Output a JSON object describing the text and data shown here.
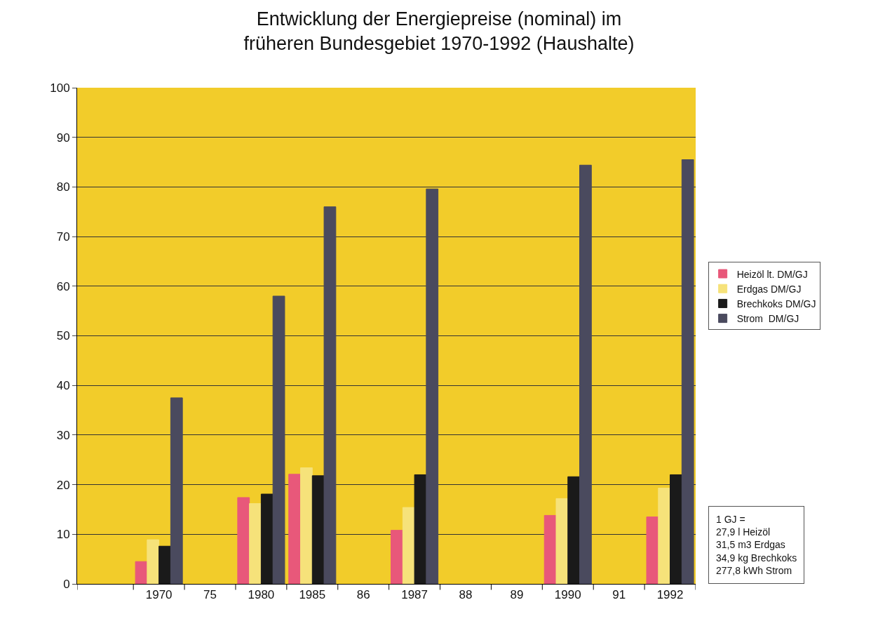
{
  "chart_data": {
    "type": "bar",
    "title": "Entwicklung der Energiepreise (nominal) im\nfrüheren Bundesgebiet 1970-1992 (Haushalte)",
    "categories": [
      "1970",
      "75",
      "1980",
      "1985",
      "86",
      "1987",
      "88",
      "89",
      "1990",
      "91",
      "1992"
    ],
    "series": [
      {
        "name": "Heizöl lt. DM/GJ",
        "color": "#e8587a",
        "values": [
          4.5,
          null,
          17.4,
          22.1,
          null,
          10.8,
          null,
          null,
          13.8,
          null,
          13.5
        ]
      },
      {
        "name": "Erdgas DM/GJ",
        "color": "#f6e27a",
        "values": [
          8.9,
          null,
          16.2,
          23.4,
          null,
          15.4,
          null,
          null,
          17.2,
          null,
          19.3
        ]
      },
      {
        "name": "Brechkoks DM/GJ",
        "color": "#1a1a1a",
        "values": [
          7.6,
          null,
          18.1,
          21.8,
          null,
          22.0,
          null,
          null,
          21.6,
          null,
          22.0
        ]
      },
      {
        "name": "Strom  DM/GJ",
        "color": "#4a4a5e",
        "values": [
          37.5,
          null,
          58.0,
          76.0,
          null,
          79.6,
          null,
          null,
          84.4,
          null,
          85.5
        ]
      }
    ],
    "ylim": [
      0,
      100
    ],
    "yticks": [
      0,
      10,
      20,
      30,
      40,
      50,
      60,
      70,
      80,
      90,
      100
    ],
    "grid": "y",
    "legend": "right",
    "annotations": [
      "1 GJ =\n27,9 l Heizöl\n31,5 m3 Erdgas\n34,9 kg Brechkoks\n277,8 kWh Strom"
    ]
  }
}
